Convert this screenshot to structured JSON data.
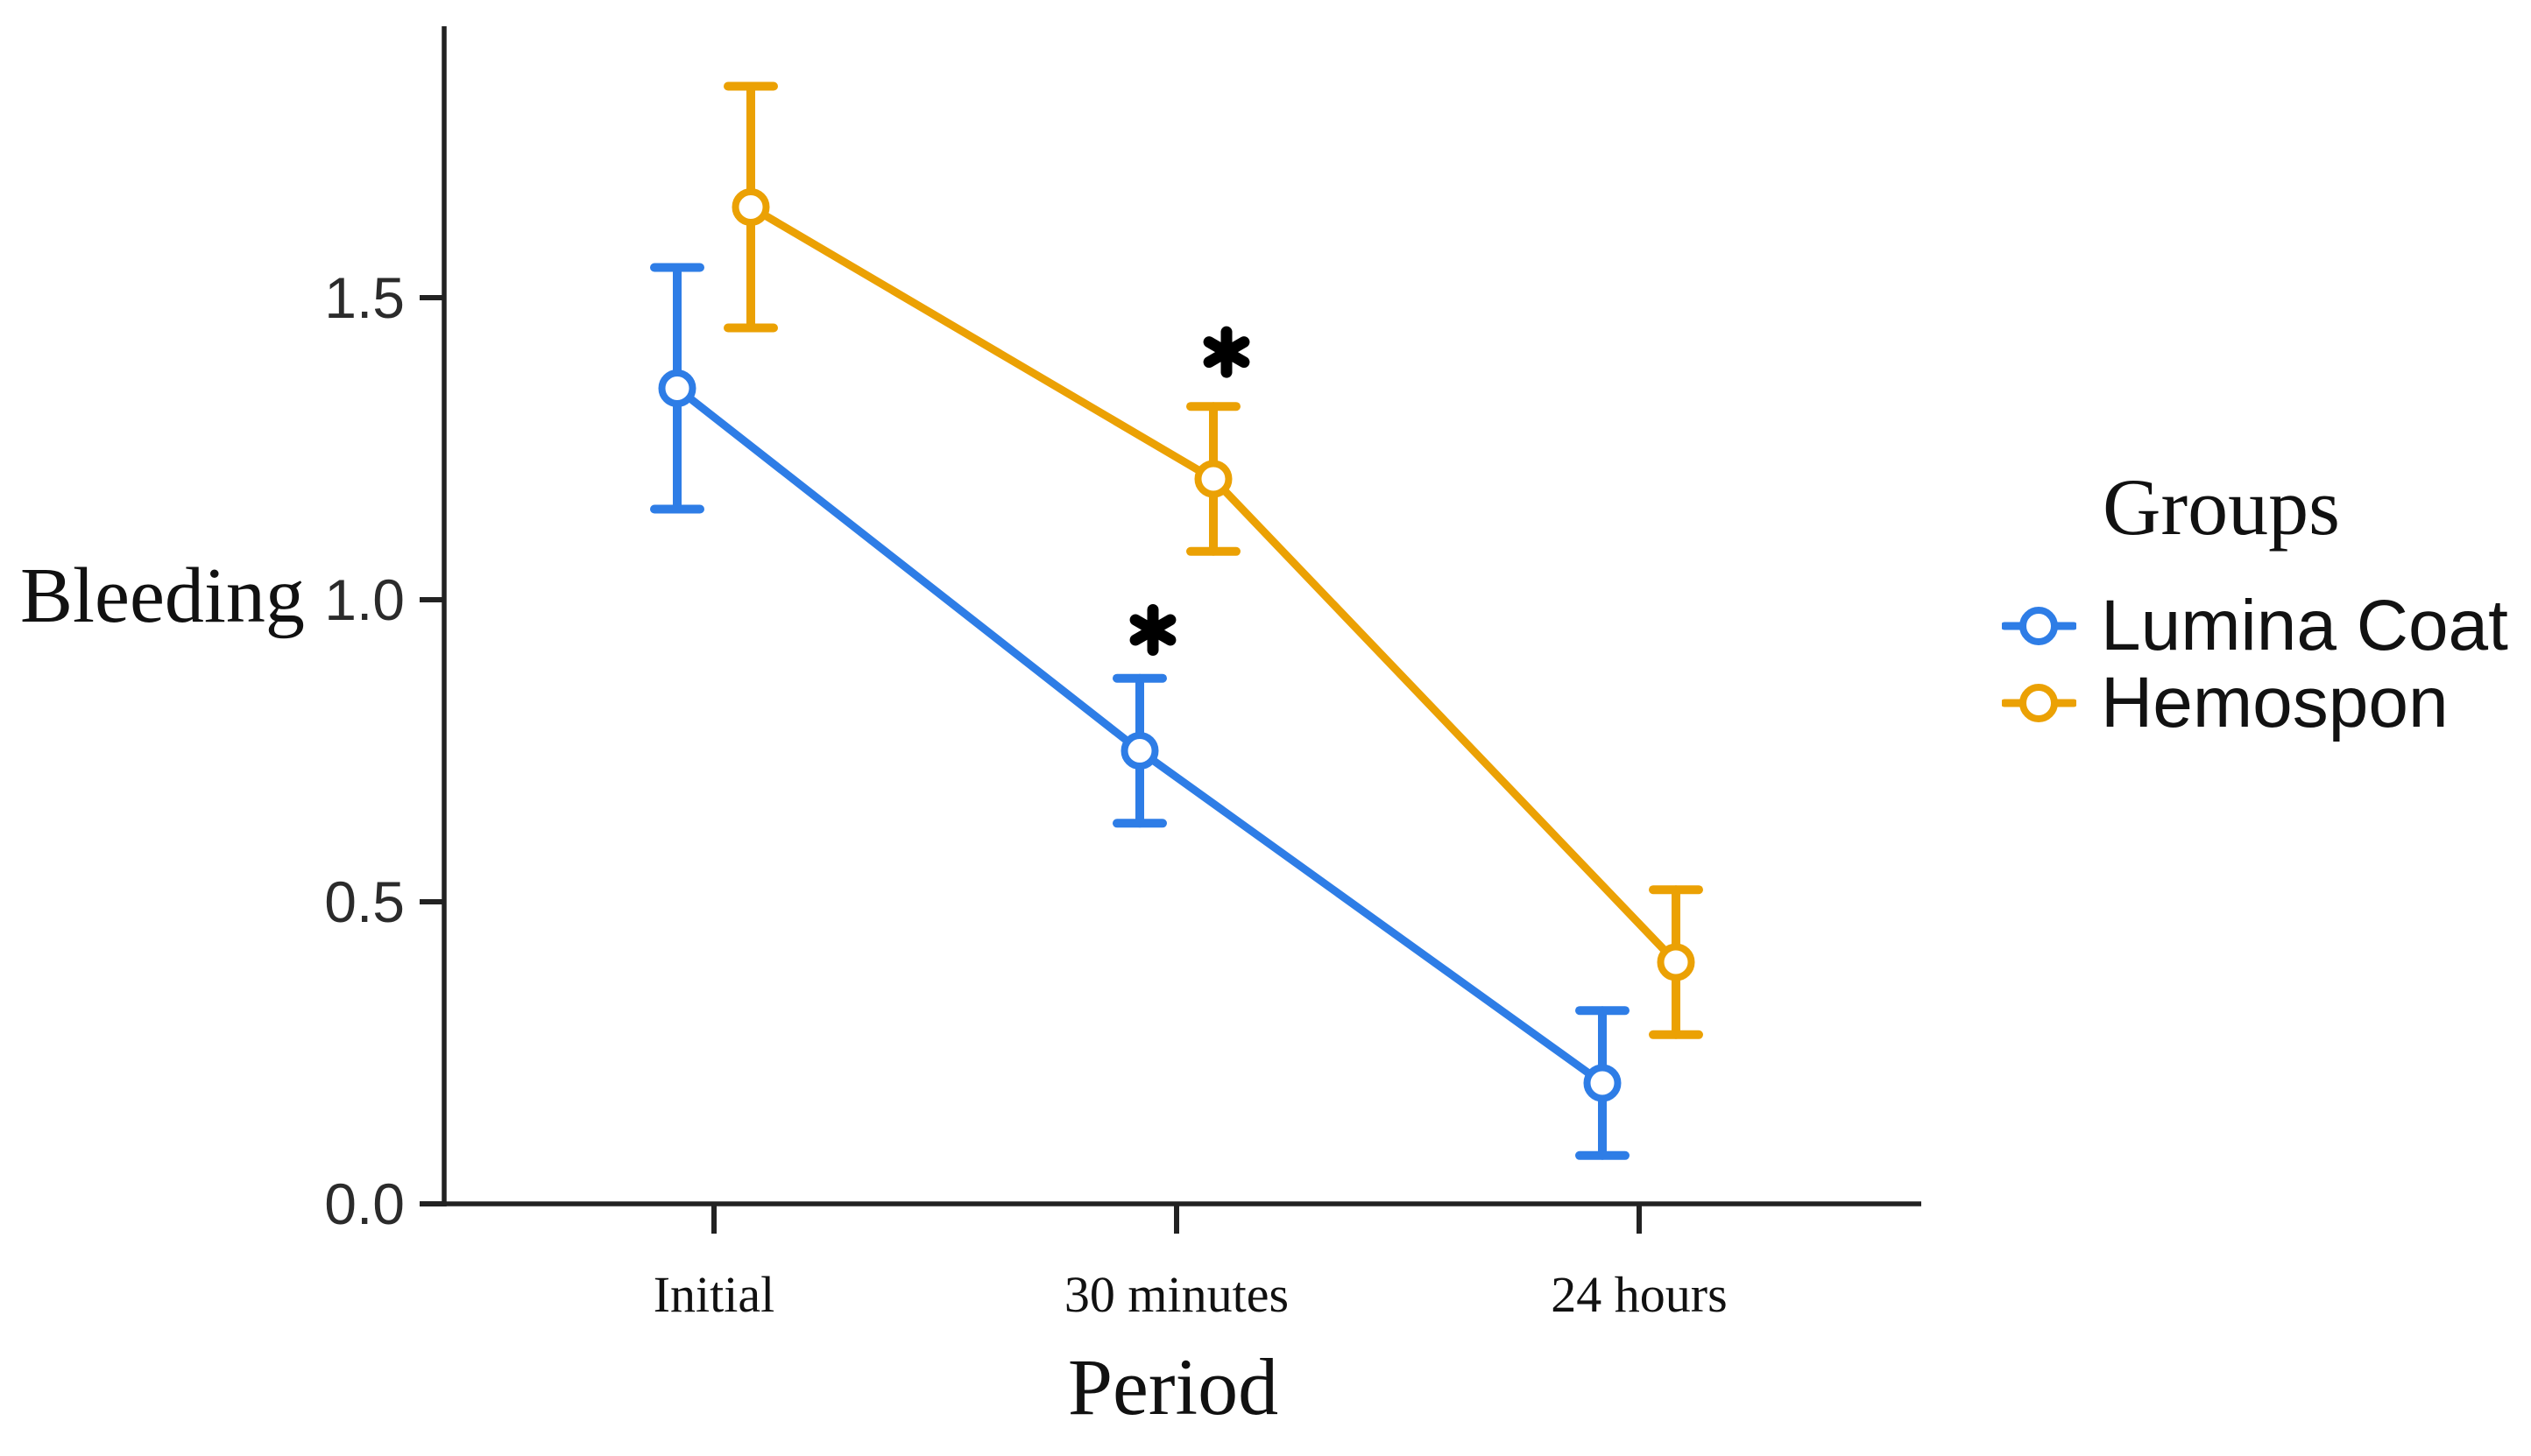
{
  "chart_data": {
    "type": "line",
    "title": "",
    "xlabel": "Period",
    "ylabel": "Bleeding",
    "categories": [
      "Initial",
      "30 minutes",
      "24 hours"
    ],
    "y_ticks": [
      "0.0",
      "0.5",
      "1.0",
      "1.5"
    ],
    "ylim": [
      0,
      1.95
    ],
    "grid": false,
    "legend_title": "Groups",
    "legend_position": "right",
    "marker": "open-circle",
    "error_bars": true,
    "axis_color": "#222222",
    "annotation_color": "#000000",
    "series": [
      {
        "name": "Lumina Coat",
        "color": "#2E7DE6",
        "values": [
          1.35,
          0.75,
          0.2
        ],
        "error_low": [
          1.15,
          0.63,
          0.08
        ],
        "error_high": [
          1.55,
          0.87,
          0.32
        ]
      },
      {
        "name": "Hemospon",
        "color": "#EBA104",
        "values": [
          1.65,
          1.2,
          0.4
        ],
        "error_low": [
          1.45,
          1.08,
          0.28
        ],
        "error_high": [
          1.85,
          1.32,
          0.52
        ]
      }
    ],
    "annotations": [
      {
        "text": "*",
        "series_index": 1,
        "category_index": 1,
        "y_value": 1.41
      },
      {
        "text": "*",
        "series_index": 0,
        "category_index": 1,
        "y_value": 0.95
      }
    ]
  }
}
